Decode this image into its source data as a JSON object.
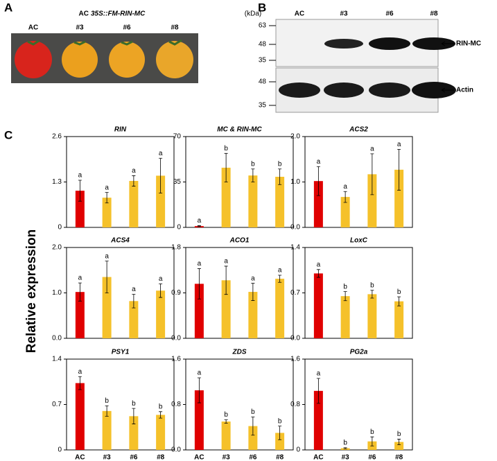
{
  "panel_labels": [
    "A",
    "B",
    "C"
  ],
  "panel_a": {
    "title_prefix": "AC",
    "title_construct": "35S::FM-RIN-MC",
    "lanes": [
      "AC",
      "#3",
      "#6",
      "#8"
    ]
  },
  "panel_b": {
    "unit": "(kDa)",
    "lanes": [
      "AC",
      "#3",
      "#6",
      "#8"
    ],
    "markers_top": [
      "63",
      "48",
      "35"
    ],
    "markers_bottom": [
      "48",
      "35"
    ],
    "bands": [
      "RIN-MC",
      "Actin"
    ]
  },
  "y_label": "Relative expression",
  "chart_data": [
    {
      "type": "bar",
      "title": "RIN",
      "values": [
        1.05,
        0.85,
        1.33,
        1.48
      ],
      "errors": [
        0.3,
        0.15,
        0.15,
        0.5
      ],
      "letters": [
        "a",
        "a",
        "a",
        "a"
      ],
      "colors": [
        "#e00000",
        "#f5c12a",
        "#f5c12a",
        "#f5c12a"
      ],
      "ylim": [
        0,
        2.6
      ],
      "yticks": [
        0,
        1.3,
        2.6
      ]
    },
    {
      "type": "bar",
      "title": "MC & RIN-MC",
      "values": [
        1,
        46,
        40,
        39
      ],
      "errors": [
        0.3,
        11,
        5,
        6
      ],
      "letters": [
        "a",
        "b",
        "b",
        "b"
      ],
      "colors": [
        "#e00000",
        "#f5c12a",
        "#f5c12a",
        "#f5c12a"
      ],
      "ylim": [
        0,
        70
      ],
      "yticks": [
        0,
        35,
        70
      ]
    },
    {
      "type": "bar",
      "title": "ACS2",
      "values": [
        1.02,
        0.67,
        1.17,
        1.27
      ],
      "errors": [
        0.32,
        0.12,
        0.45,
        0.45
      ],
      "letters": [
        "a",
        "a",
        "a",
        "a"
      ],
      "colors": [
        "#e00000",
        "#f5c12a",
        "#f5c12a",
        "#f5c12a"
      ],
      "ylim": [
        0,
        2
      ],
      "yticks": [
        {
          "value": 0,
          "label": "0.0"
        },
        {
          "value": 1,
          "label": "1.0"
        },
        {
          "value": 2,
          "label": "2.0"
        }
      ]
    },
    {
      "type": "bar",
      "title": "ACS4",
      "values": [
        1.02,
        1.35,
        0.82,
        1.05
      ],
      "errors": [
        0.2,
        0.35,
        0.15,
        0.15
      ],
      "letters": [
        "a",
        "a",
        "a",
        "a"
      ],
      "colors": [
        "#e00000",
        "#f5c12a",
        "#f5c12a",
        "#f5c12a"
      ],
      "ylim": [
        0,
        2
      ],
      "yticks": [
        {
          "value": 0,
          "label": "0.0"
        },
        {
          "value": 1,
          "label": "1.0"
        },
        {
          "value": 2,
          "label": "2.0"
        }
      ]
    },
    {
      "type": "bar",
      "title": "ACO1",
      "values": [
        1.08,
        1.15,
        0.92,
        1.18
      ],
      "errors": [
        0.3,
        0.28,
        0.17,
        0.07
      ],
      "letters": [
        "a",
        "a",
        "a",
        "a"
      ],
      "colors": [
        "#e00000",
        "#f5c12a",
        "#f5c12a",
        "#f5c12a"
      ],
      "ylim": [
        0,
        1.8
      ],
      "yticks": [
        {
          "value": 0,
          "label": "0.0"
        },
        0.9,
        1.8
      ]
    },
    {
      "type": "bar",
      "title": "LoxC",
      "values": [
        1.0,
        0.65,
        0.68,
        0.57
      ],
      "errors": [
        0.06,
        0.07,
        0.06,
        0.07
      ],
      "letters": [
        "a",
        "b",
        "b",
        "b"
      ],
      "colors": [
        "#e00000",
        "#f5c12a",
        "#f5c12a",
        "#f5c12a"
      ],
      "ylim": [
        0,
        1.4
      ],
      "yticks": [
        {
          "value": 0,
          "label": "0.0"
        },
        0.7,
        1.4
      ]
    },
    {
      "type": "bar",
      "title": "PSY1",
      "categories": [
        "AC",
        "#3",
        "#6",
        "#8"
      ],
      "values": [
        1.03,
        0.6,
        0.52,
        0.54
      ],
      "errors": [
        0.1,
        0.08,
        0.12,
        0.05
      ],
      "letters": [
        "a",
        "b",
        "b",
        "b"
      ],
      "colors": [
        "#e00000",
        "#f5c12a",
        "#f5c12a",
        "#f5c12a"
      ],
      "ylim": [
        0,
        1.4
      ],
      "yticks": [
        0,
        0.7,
        1.4
      ]
    },
    {
      "type": "bar",
      "title": "ZDS",
      "categories": [
        "AC",
        "#3",
        "#6",
        "#8"
      ],
      "values": [
        1.05,
        0.5,
        0.42,
        0.3
      ],
      "errors": [
        0.22,
        0.03,
        0.16,
        0.12
      ],
      "letters": [
        "a",
        "b",
        "b",
        "b"
      ],
      "colors": [
        "#e00000",
        "#f5c12a",
        "#f5c12a",
        "#f5c12a"
      ],
      "ylim": [
        0,
        1.6
      ],
      "yticks": [
        {
          "value": 0,
          "label": "0.0"
        },
        0.8,
        1.6
      ]
    },
    {
      "type": "bar",
      "title": "PG2a",
      "categories": [
        "AC",
        "#3",
        "#6",
        "#8"
      ],
      "values": [
        1.04,
        0.03,
        0.15,
        0.14
      ],
      "errors": [
        0.22,
        0.01,
        0.08,
        0.05
      ],
      "letters": [
        "a",
        "b",
        "b",
        "b"
      ],
      "colors": [
        "#e00000",
        "#f5c12a",
        "#f5c12a",
        "#f5c12a"
      ],
      "ylim": [
        0,
        1.6
      ],
      "yticks": [
        0,
        0.8,
        1.6
      ]
    }
  ]
}
